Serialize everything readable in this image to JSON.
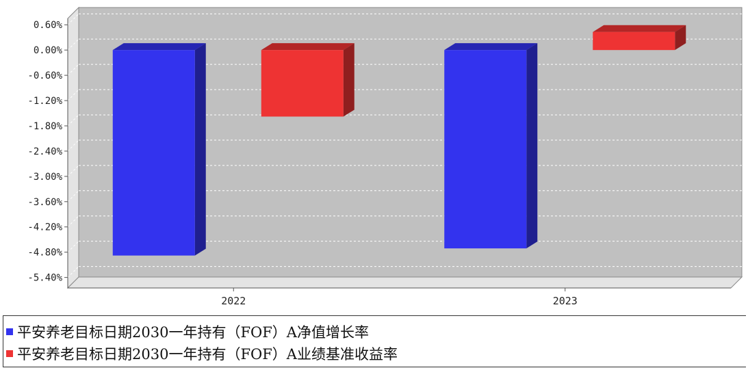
{
  "chart_data": {
    "type": "bar",
    "categories": [
      "2022",
      "2023"
    ],
    "series": [
      {
        "name": "平安养老目标日期2030一年持有（FOF）A净值增长率",
        "color": "#3333ee",
        "values": [
          -4.88,
          -4.71
        ]
      },
      {
        "name": "平安养老目标日期2030一年持有（FOF）A业绩基准收益率",
        "color": "#ee3333",
        "values": [
          -1.58,
          0.43
        ]
      }
    ],
    "yticks": [
      "0.60%",
      "0.00%",
      "-0.60%",
      "-1.20%",
      "-1.80%",
      "-2.40%",
      "-3.00%",
      "-3.60%",
      "-4.20%",
      "-4.80%",
      "-5.40%"
    ],
    "ylim": [
      -5.65,
      0.75
    ],
    "grid": true,
    "legend_position": "bottom",
    "plot_background": "#c0c0c0"
  }
}
